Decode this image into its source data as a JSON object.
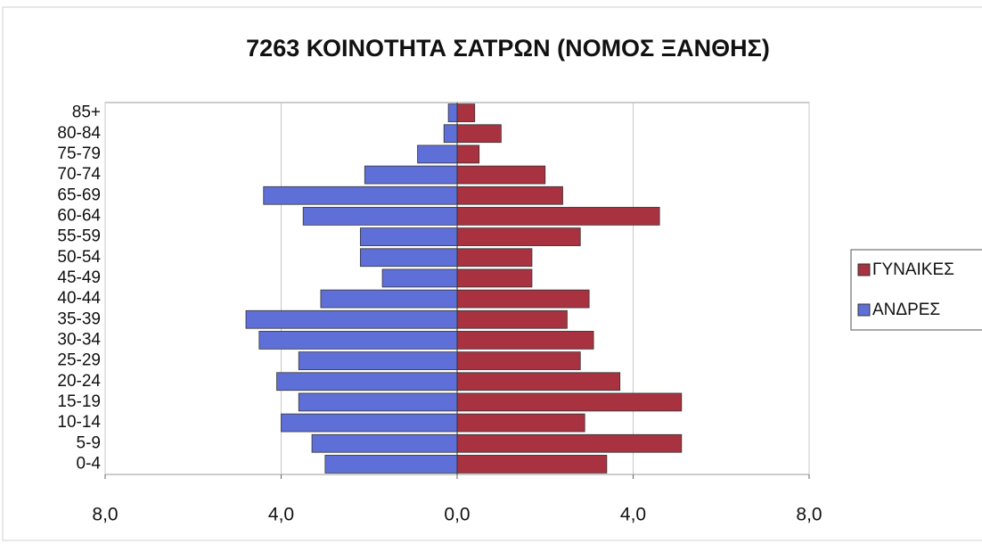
{
  "chart_data": {
    "type": "pyramid",
    "title": "7263 ΚΟΙΝΟΤΗΤΑ ΣΑΤΡΩΝ (ΝΟΜΟΣ ΞΑΝΘΗΣ)",
    "categories": [
      "0-4",
      "5-9",
      "10-14",
      "15-19",
      "20-24",
      "25-29",
      "30-34",
      "35-39",
      "40-44",
      "45-49",
      "50-54",
      "55-59",
      "60-64",
      "65-69",
      "70-74",
      "75-79",
      "80-84",
      "85+"
    ],
    "series": [
      {
        "name": "ΓΥΝΑΙΚΕΣ",
        "color": "#a8323f",
        "values": [
          3.4,
          5.1,
          2.9,
          5.1,
          3.7,
          2.8,
          3.1,
          2.5,
          3.0,
          1.7,
          1.7,
          2.8,
          4.6,
          2.4,
          2.0,
          0.5,
          1.0,
          0.4
        ]
      },
      {
        "name": "ΑΝΔΡΕΣ",
        "color": "#5f6fd8",
        "values": [
          3.0,
          3.3,
          4.0,
          3.6,
          4.1,
          3.6,
          4.5,
          4.8,
          3.1,
          1.7,
          2.2,
          2.2,
          3.5,
          4.4,
          2.1,
          0.9,
          0.3,
          0.2
        ]
      }
    ],
    "xlim": [
      -8,
      8
    ],
    "xticks": [
      {
        "value": -8,
        "label": "8,0"
      },
      {
        "value": -4,
        "label": "4,0"
      },
      {
        "value": 0,
        "label": "0,0"
      },
      {
        "value": 4,
        "label": "4,0"
      },
      {
        "value": 8,
        "label": "8,0"
      }
    ],
    "grid": true,
    "legend": "right"
  }
}
